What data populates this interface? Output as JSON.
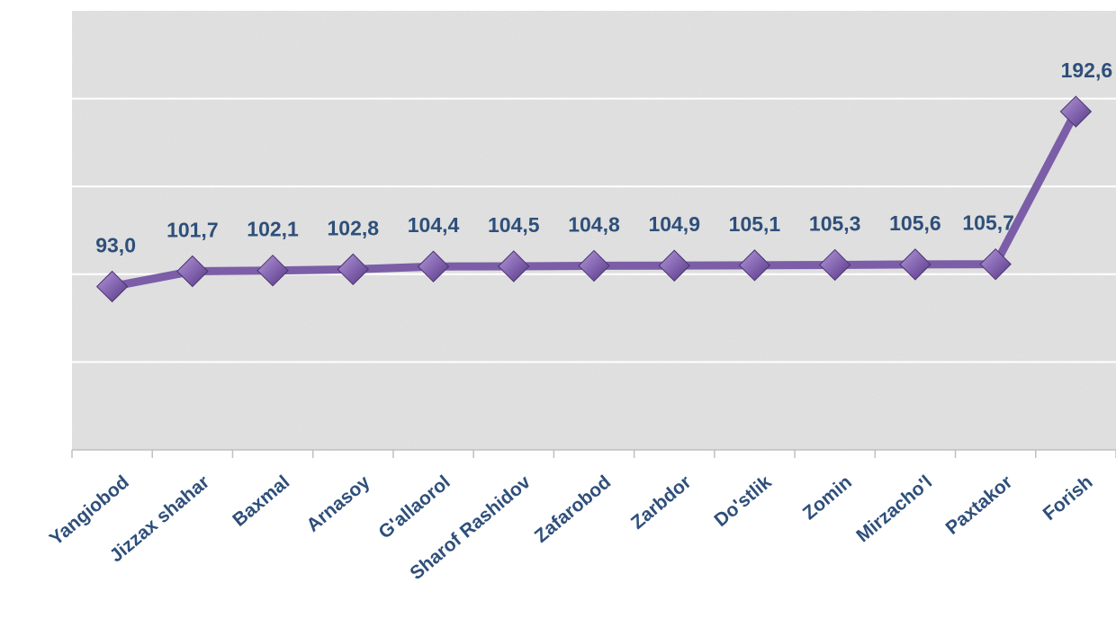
{
  "chart_data": {
    "type": "line",
    "categories": [
      "Yangiobod",
      "Jizzax shahar",
      "Baxmal",
      "Arnasoy",
      "G'allaorol",
      "Sharof Rashidov",
      "Zafarobod",
      "Zarbdor",
      "Do'stlik",
      "Zomin",
      "Mirzacho'l",
      "Paxtakor",
      "Forish"
    ],
    "values": [
      93.0,
      101.7,
      102.1,
      102.8,
      104.4,
      104.5,
      104.8,
      104.9,
      105.1,
      105.3,
      105.6,
      105.7,
      192.6
    ],
    "data_labels": [
      "93,0",
      "101,7",
      "102,1",
      "102,8",
      "104,4",
      "104,5",
      "104,8",
      "104,9",
      "105,1",
      "105,3",
      "105,6",
      "105,7",
      "192,6"
    ],
    "title": "",
    "xlabel": "",
    "ylabel": "",
    "ylim": [
      0,
      250
    ],
    "grid": true,
    "legend": "none",
    "marker": "diamond",
    "colors": {
      "line": "#7b5ea7",
      "marker": "#8566b2",
      "label": "#2e4f7a",
      "gridline": "#ffffff",
      "axis": "#bfbfbf",
      "plot_background": "#e4e4e4"
    }
  }
}
